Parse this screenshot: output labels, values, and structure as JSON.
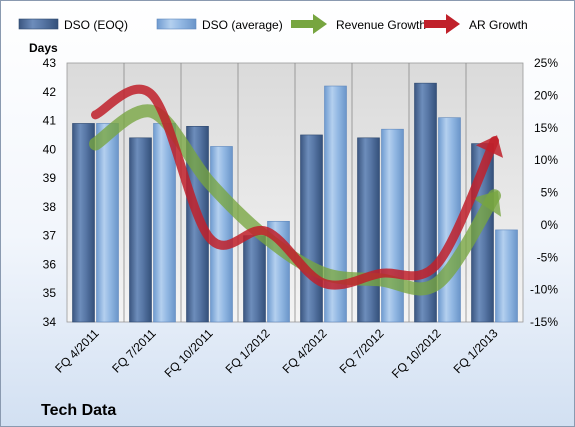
{
  "chart_data": {
    "type": "bar",
    "title": "Tech Data",
    "ylabel": "Days",
    "xlabel": "",
    "categories": [
      "FQ 4/2011",
      "FQ 7/2011",
      "FQ 10/2011",
      "FQ 1/2012",
      "FQ 4/2012",
      "FQ 7/2012",
      "FQ 10/2012",
      "FQ 1/2013"
    ],
    "ylim": [
      34,
      43
    ],
    "y_ticks": [
      "34",
      "35",
      "36",
      "37",
      "38",
      "39",
      "40",
      "41",
      "42",
      "43"
    ],
    "y2lim": [
      -15,
      25
    ],
    "y2_ticks": [
      "-15%",
      "-10%",
      "-5%",
      "0%",
      "5%",
      "10%",
      "15%",
      "20%",
      "25%"
    ],
    "grid": true,
    "legend_position": "top",
    "series": [
      {
        "name": "DSO (EOQ)",
        "kind": "bar",
        "axis": "left",
        "color": "#4f6f9e",
        "values": [
          40.9,
          40.4,
          40.8,
          37.0,
          40.5,
          40.4,
          42.3,
          40.2
        ]
      },
      {
        "name": "DSO (average)",
        "kind": "bar",
        "axis": "left",
        "color": "#8db4e2",
        "values": [
          40.9,
          40.9,
          40.1,
          37.5,
          42.2,
          40.7,
          41.1,
          37.2
        ]
      },
      {
        "name": "Revenue Growth",
        "kind": "arrow-line",
        "axis": "right",
        "color": "#77a540",
        "values": [
          12.5,
          17.5,
          6.5,
          -2.0,
          -7.5,
          -8.5,
          -9.0,
          4.5
        ]
      },
      {
        "name": "AR Growth",
        "kind": "arrow-line",
        "axis": "right",
        "color": "#c0202a",
        "values": [
          17.0,
          20.0,
          -2.0,
          -1.0,
          -9.0,
          -7.5,
          -6.0,
          13.0
        ]
      }
    ]
  }
}
